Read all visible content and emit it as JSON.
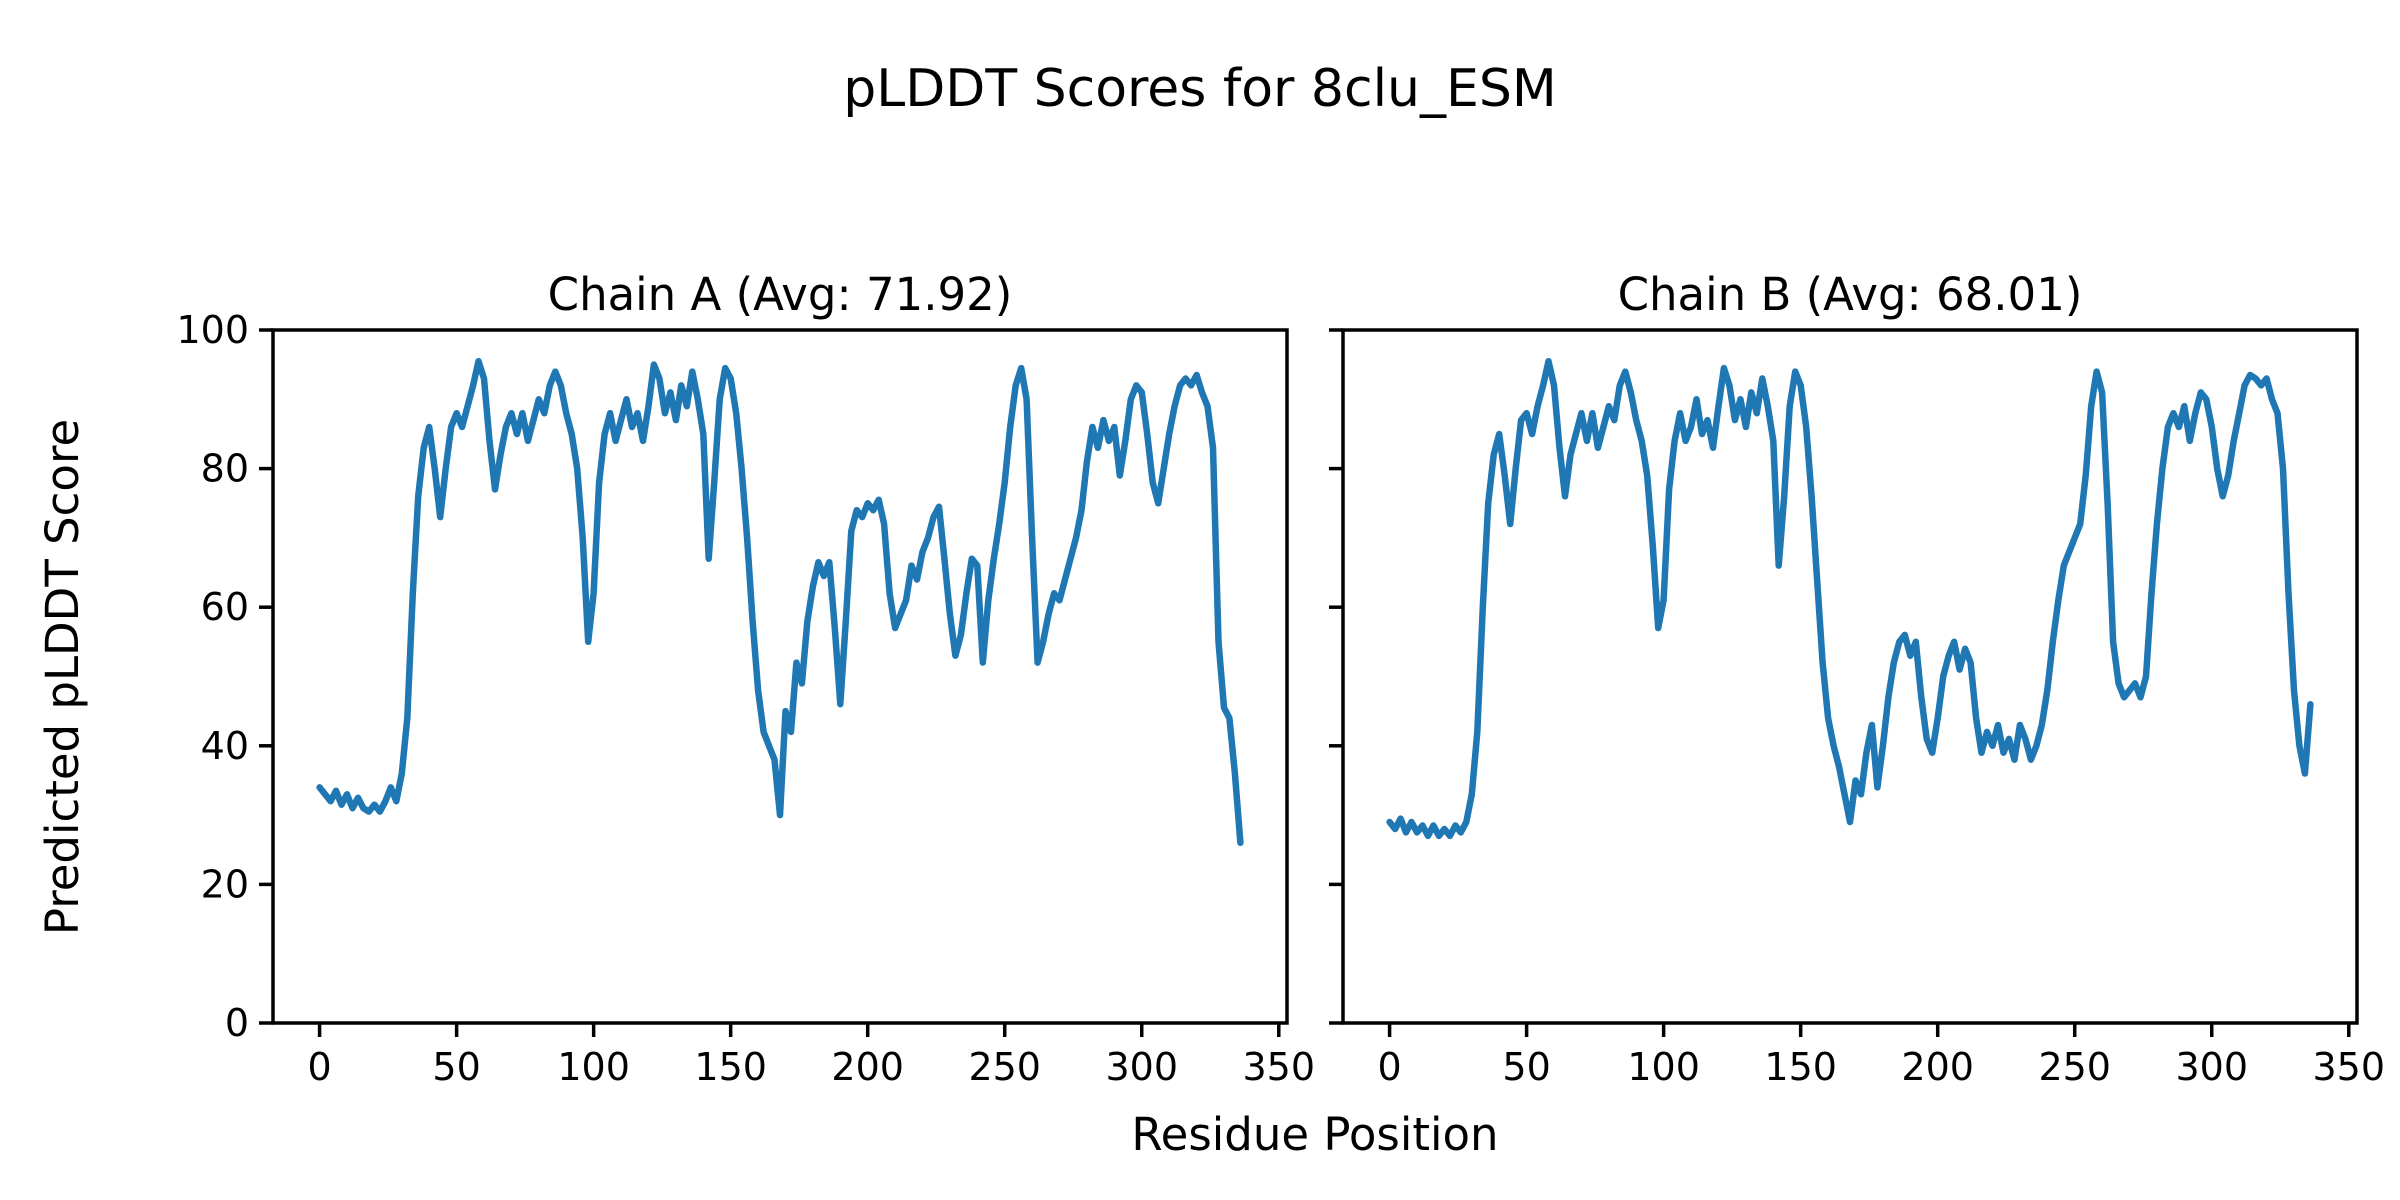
{
  "figure": {
    "title": "pLDDT Scores for 8clu_ESM",
    "xlabel": "Residue Position",
    "ylabel": "Predicted pLDDT Score",
    "background": "#ffffff",
    "text_color": "#000000"
  },
  "chart_data": [
    {
      "type": "line",
      "title": "Chain A (Avg: 71.92)",
      "series_name": "Chain A",
      "average": 71.92,
      "line_color": "#1f77b4",
      "grid": false,
      "legend": "none",
      "xlim": [
        -17,
        353
      ],
      "ylim": [
        0,
        100
      ],
      "xticks": [
        0,
        50,
        100,
        150,
        200,
        250,
        300,
        350
      ],
      "yticks": [
        0,
        20,
        40,
        60,
        80,
        100
      ],
      "show_ytick_labels": true,
      "x_start": 0,
      "x_step": 2,
      "values": [
        34,
        33,
        32,
        33.5,
        31.5,
        33,
        31,
        32.5,
        31,
        30.5,
        31.5,
        30.5,
        32,
        34,
        32,
        36,
        44,
        62,
        76,
        83,
        86,
        80,
        73,
        80,
        86,
        88,
        86,
        89,
        92,
        95.5,
        93,
        84,
        77,
        82,
        86,
        88,
        85,
        88,
        84,
        87,
        90,
        88,
        92,
        94,
        92,
        88,
        85,
        80,
        70,
        55,
        62,
        78,
        85,
        88,
        84,
        87,
        90,
        86,
        88,
        84,
        89,
        95,
        93,
        88,
        91,
        87,
        92,
        89,
        94,
        90,
        85,
        67,
        78,
        90,
        94.5,
        93,
        88,
        80,
        70,
        58,
        48,
        42,
        40,
        38,
        30,
        45,
        42,
        52,
        49,
        58,
        63,
        66.5,
        64.5,
        66.5,
        57,
        46,
        58,
        71,
        74,
        73,
        75,
        74,
        75.5,
        72,
        62,
        57,
        59,
        61,
        66,
        64,
        68,
        70,
        73,
        74.5,
        67,
        59,
        53,
        56,
        62,
        67,
        66,
        52,
        61,
        67,
        72,
        78,
        86,
        92,
        94.5,
        90,
        70,
        52,
        55,
        59,
        62,
        61,
        64,
        67,
        70,
        74,
        81,
        86,
        83,
        87,
        84,
        86,
        79,
        84,
        90,
        92,
        91,
        85,
        78,
        75,
        80,
        85,
        89,
        92,
        93,
        92,
        93.5,
        91,
        89,
        83,
        55,
        45.5,
        44,
        36,
        26
      ]
    },
    {
      "type": "line",
      "title": "Chain B (Avg: 68.01)",
      "series_name": "Chain B",
      "average": 68.01,
      "line_color": "#1f77b4",
      "grid": false,
      "legend": "none",
      "xlim": [
        -17,
        353
      ],
      "ylim": [
        0,
        100
      ],
      "xticks": [
        0,
        50,
        100,
        150,
        200,
        250,
        300,
        350
      ],
      "yticks": [
        0,
        20,
        40,
        60,
        80,
        100
      ],
      "show_ytick_labels": false,
      "x_start": 0,
      "x_step": 2,
      "values": [
        29,
        28,
        29.5,
        27.5,
        29,
        27.5,
        28.5,
        27,
        28.5,
        27,
        28,
        27,
        28.5,
        27.5,
        29,
        33,
        42,
        60,
        75,
        82,
        85,
        79,
        72,
        80,
        87,
        88,
        85,
        89,
        92,
        95.5,
        92,
        83,
        76,
        82,
        85,
        88,
        84,
        88,
        83,
        86,
        89,
        87,
        92,
        94,
        91,
        87,
        84,
        79,
        69,
        57,
        61,
        77,
        84,
        88,
        84,
        86,
        90,
        85,
        87,
        83,
        89,
        94.5,
        92,
        87,
        90,
        86,
        91,
        88,
        93,
        89,
        84,
        66,
        76,
        89,
        94,
        92,
        86,
        76,
        64,
        52,
        44,
        40,
        37,
        33,
        29,
        35,
        33,
        39,
        43,
        34,
        40,
        47,
        52,
        55,
        56,
        53,
        55,
        47,
        41,
        39,
        44,
        50,
        53,
        55,
        51,
        54,
        52,
        44,
        39,
        42,
        40,
        43,
        39,
        41,
        38,
        43,
        41,
        38,
        40,
        43,
        48,
        55,
        61,
        66,
        68,
        70,
        72,
        79,
        89,
        94,
        91,
        75,
        55,
        49,
        47,
        48,
        49,
        47,
        50,
        62,
        72,
        80,
        86,
        88,
        86,
        89,
        84,
        88,
        91,
        90,
        86,
        80,
        76,
        79,
        84,
        88,
        92,
        93.5,
        93,
        92,
        93,
        90,
        88,
        80,
        62,
        48,
        40,
        36,
        46
      ]
    }
  ]
}
